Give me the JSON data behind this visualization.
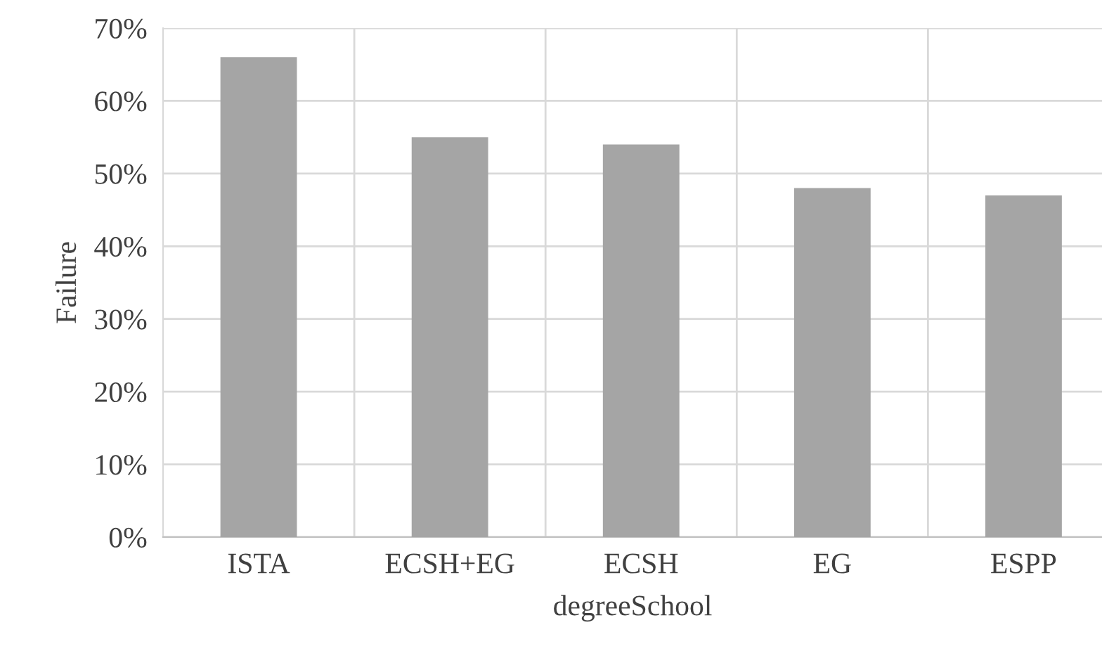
{
  "chart_data": {
    "type": "bar",
    "xlabel": "degreeSchool",
    "ylabel": "Failure",
    "categories": [
      "ISTA",
      "ECSH+EG",
      "ECSH",
      "EG",
      "ESPP"
    ],
    "values": [
      66,
      55,
      54,
      48,
      47
    ],
    "color": "#a5a5a5",
    "ylim": [
      0,
      70
    ],
    "yticks": [
      {
        "value": 0,
        "label": "0%"
      },
      {
        "value": 10,
        "label": "10%"
      },
      {
        "value": 20,
        "label": "20%"
      },
      {
        "value": 30,
        "label": "30%"
      },
      {
        "value": 40,
        "label": "40%"
      },
      {
        "value": 50,
        "label": "50%"
      },
      {
        "value": 60,
        "label": "60%"
      },
      {
        "value": 70,
        "label": "70%"
      }
    ],
    "grid": true
  }
}
